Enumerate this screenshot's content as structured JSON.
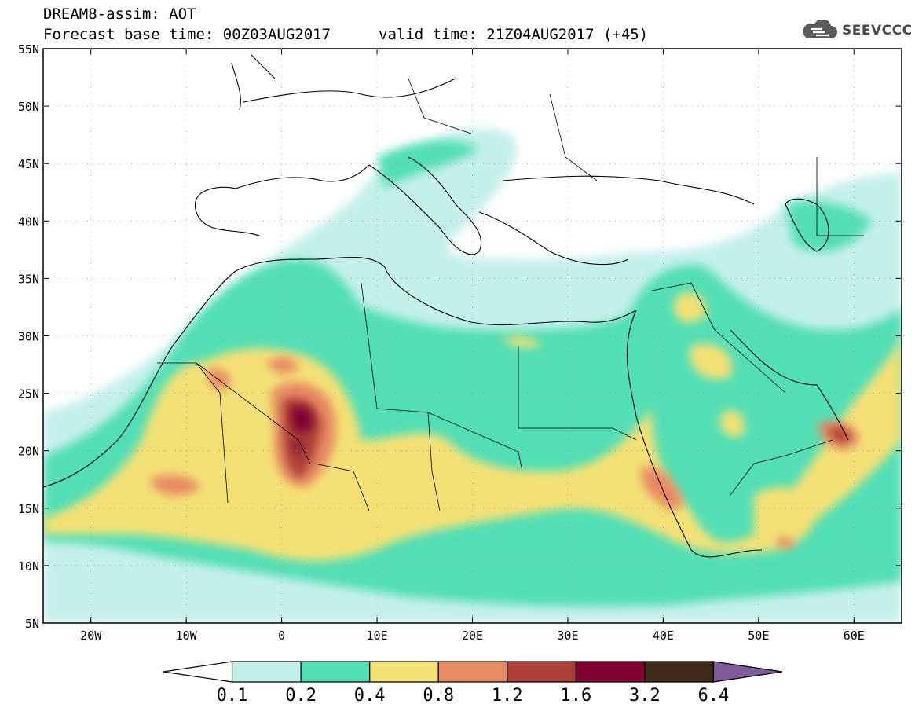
{
  "header": {
    "line1": "DREAM8-assim: AOT",
    "base_time": "Forecast base time: 00Z03AUG2017",
    "valid_time": "valid time: 21Z04AUG2017 (+45)"
  },
  "logo": {
    "text": "SEEVCCC",
    "icon": "cloud-icon"
  },
  "map": {
    "lon_range": [
      -25,
      65
    ],
    "lat_range": [
      5,
      55
    ],
    "lat_labels": [
      "55N",
      "50N",
      "45N",
      "40N",
      "35N",
      "30N",
      "25N",
      "20N",
      "15N",
      "10N",
      "5N"
    ],
    "lon_labels": [
      "20W",
      "10W",
      "0",
      "10E",
      "20E",
      "30E",
      "40E",
      "50E",
      "60E"
    ]
  },
  "colorbar": {
    "levels": [
      "0.1",
      "0.2",
      "0.4",
      "0.8",
      "1.2",
      "1.6",
      "3.2",
      "6.4"
    ],
    "colors": [
      "#ffffff",
      "#c4f0ea",
      "#52dfb5",
      "#f4e176",
      "#e88a62",
      "#ac4036",
      "#7f0434",
      "#402a19",
      "#7e5b9b"
    ]
  }
}
